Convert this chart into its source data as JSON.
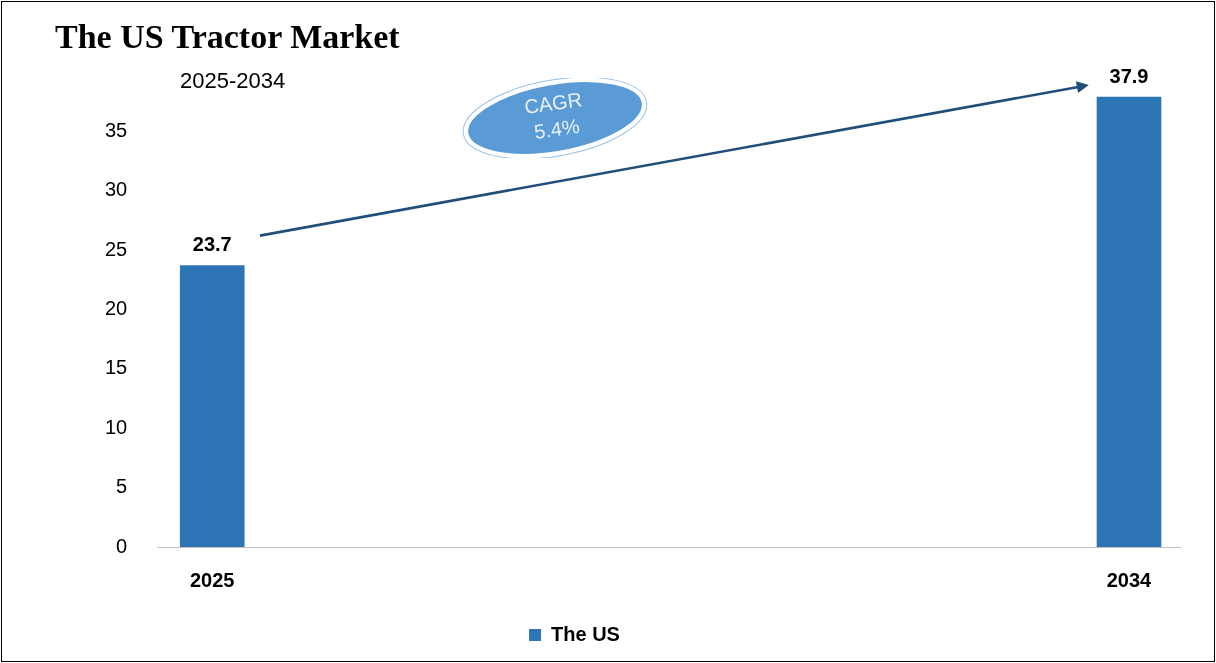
{
  "chart_data": {
    "type": "bar",
    "title": "The US Tractor Market",
    "subtitle": "2025-2034",
    "categories": [
      "2025",
      "2034"
    ],
    "series": [
      {
        "name": "The US",
        "color": "#2e75b6",
        "values": [
          23.7,
          37.9
        ]
      }
    ],
    "ylim": [
      0,
      37.9
    ],
    "yticks": [
      0,
      5,
      10,
      15,
      20,
      25,
      30,
      35
    ],
    "data_labels": true,
    "grid": false,
    "legend": "bottom",
    "annotations": [
      "CAGR 5.4%"
    ]
  }
}
